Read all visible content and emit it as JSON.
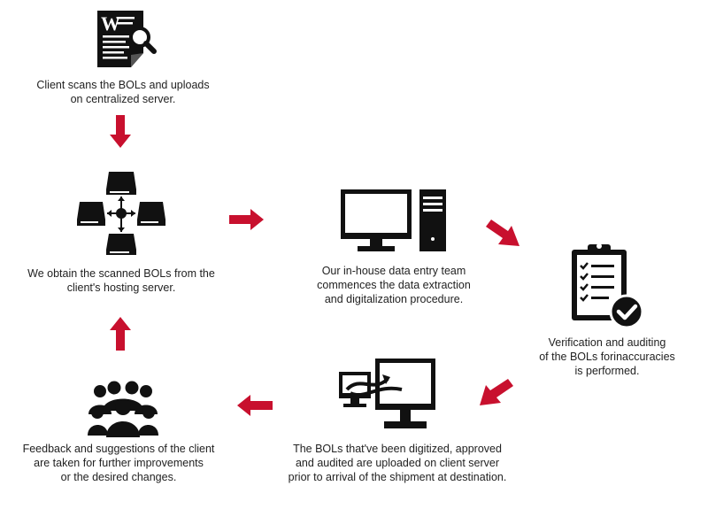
{
  "colors": {
    "icon": "#111111",
    "arrow": "#c8102e",
    "text": "#222222"
  },
  "steps": [
    {
      "icon": "document-search-icon",
      "logo_letter": "W",
      "lines": [
        "Client scans the BOLs and uploads",
        "on centralized server."
      ]
    },
    {
      "icon": "server-network-icon",
      "lines": [
        "We obtain the scanned BOLs from the",
        "client's hosting server."
      ]
    },
    {
      "icon": "desktop-computer-icon",
      "lines": [
        "Our in-house data entry team",
        "commences the data extraction",
        "and digitalization procedure."
      ]
    },
    {
      "icon": "clipboard-check-icon",
      "lines": [
        "Verification and auditing",
        "of the BOLs forinaccuracies",
        "is performed."
      ]
    },
    {
      "icon": "monitor-transfer-icon",
      "lines": [
        "The BOLs that've been digitized, approved",
        "and audited are uploaded on client server",
        "prior to arrival of the shipment at destination."
      ]
    },
    {
      "icon": "people-group-icon",
      "lines": [
        "Feedback and suggestions of the client",
        "are taken for further improvements",
        "or the desired changes."
      ]
    }
  ],
  "arrows": [
    {
      "from": "step-1",
      "to": "step-2",
      "direction": "down"
    },
    {
      "from": "step-2",
      "to": "step-3",
      "direction": "right"
    },
    {
      "from": "step-3",
      "to": "step-4",
      "direction": "down-right"
    },
    {
      "from": "step-4",
      "to": "step-5",
      "direction": "down-left"
    },
    {
      "from": "step-5",
      "to": "step-6",
      "direction": "left"
    },
    {
      "from": "step-6",
      "to": "step-2",
      "direction": "up"
    }
  ]
}
